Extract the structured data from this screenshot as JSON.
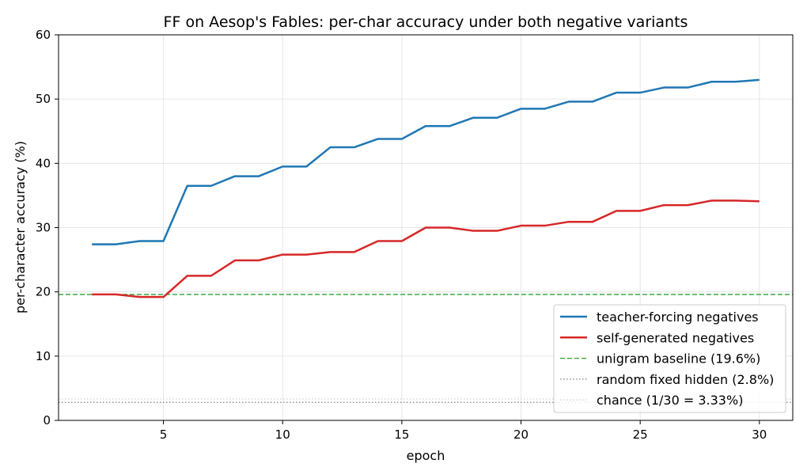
{
  "chart_data": {
    "type": "line",
    "title": "FF on Aesop's Fables: per-char accuracy under both negative variants",
    "xlabel": "epoch",
    "ylabel": "per-character accuracy (%)",
    "xlim": [
      0.6,
      31.4
    ],
    "ylim": [
      0,
      60
    ],
    "xticks": [
      5,
      10,
      15,
      20,
      25,
      30
    ],
    "yticks": [
      0,
      10,
      20,
      30,
      40,
      50,
      60
    ],
    "grid": true,
    "legend_position": "lower-right",
    "x": [
      2,
      3,
      4,
      5,
      6,
      7,
      8,
      9,
      10,
      11,
      12,
      13,
      14,
      15,
      16,
      17,
      18,
      19,
      20,
      21,
      22,
      23,
      24,
      25,
      26,
      27,
      28,
      29,
      30
    ],
    "series": [
      {
        "name": "teacher-forcing negatives",
        "color": "#1f77b4",
        "values": [
          27.4,
          27.4,
          27.9,
          27.9,
          36.5,
          36.5,
          38.0,
          38.0,
          39.5,
          39.5,
          42.5,
          42.5,
          43.8,
          43.8,
          45.8,
          45.8,
          47.1,
          47.1,
          48.5,
          48.5,
          49.6,
          49.6,
          51.0,
          51.0,
          51.8,
          51.8,
          52.7,
          52.7,
          53.0
        ]
      },
      {
        "name": "self-generated negatives",
        "color": "#d62728",
        "values": [
          19.6,
          19.6,
          19.2,
          19.2,
          22.5,
          22.5,
          24.9,
          24.9,
          25.8,
          25.8,
          26.2,
          26.2,
          27.9,
          27.9,
          30.0,
          30.0,
          29.5,
          29.5,
          30.3,
          30.3,
          30.9,
          30.9,
          32.6,
          32.6,
          33.5,
          33.5,
          34.2,
          34.2,
          34.1
        ]
      }
    ],
    "reference_lines": [
      {
        "name": "unigram baseline (19.6%)",
        "value": 19.6,
        "color": "#2ca02c",
        "style": "dashed"
      },
      {
        "name": "random fixed hidden (2.8%)",
        "value": 2.8,
        "color": "#808080",
        "style": "dotted"
      },
      {
        "name": "chance (1/30 = 3.33%)",
        "value": 3.33,
        "color": "#d3d3d3",
        "style": "dotted"
      }
    ]
  }
}
